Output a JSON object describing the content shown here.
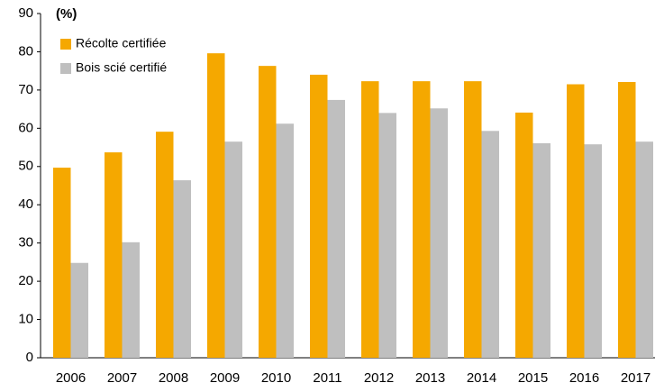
{
  "chart_data": {
    "type": "bar",
    "y_label": "(%)",
    "categories": [
      "2006",
      "2007",
      "2008",
      "2009",
      "2010",
      "2011",
      "2012",
      "2013",
      "2014",
      "2015",
      "2016",
      "2017"
    ],
    "series": [
      {
        "name": "Récolte certifiée",
        "color": "#f5a800",
        "values": [
          49.7,
          53.7,
          59.1,
          79.6,
          76.3,
          74.0,
          72.3,
          72.3,
          72.3,
          64.1,
          71.5,
          72.1
        ]
      },
      {
        "name": "Bois scié certifié",
        "color": "#bfbfbf",
        "values": [
          24.8,
          30.2,
          46.4,
          56.5,
          61.2,
          67.4,
          64.0,
          65.2,
          59.3,
          56.1,
          55.8,
          56.5
        ]
      }
    ],
    "ylim": [
      0,
      90
    ],
    "yticks": [
      0,
      10,
      20,
      30,
      40,
      50,
      60,
      70,
      80,
      90
    ],
    "grid": false
  }
}
